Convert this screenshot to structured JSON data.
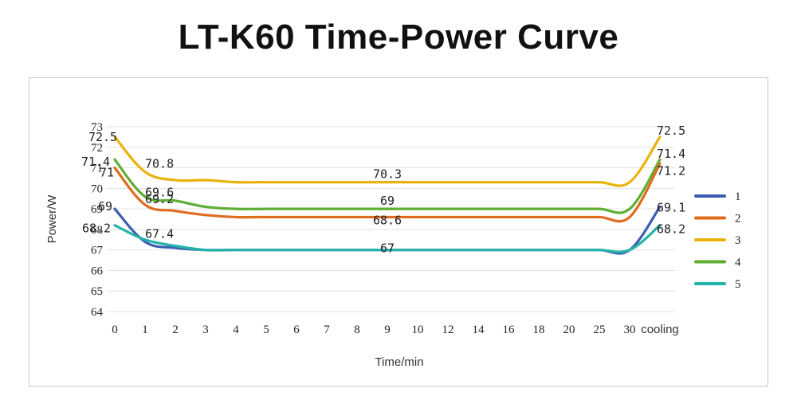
{
  "title": "LT-K60 Time-Power Curve",
  "chart_data": {
    "type": "line",
    "title": "LT-K60 Time-Power Curve",
    "xlabel": "Time/min",
    "ylabel": "Power/W",
    "ylim": [
      64,
      73
    ],
    "y_ticks": [
      "64",
      "65",
      "66",
      "67",
      "68",
      "69",
      "70",
      "71",
      "72",
      "73"
    ],
    "categories": [
      "0",
      "1",
      "2",
      "3",
      "4",
      "5",
      "6",
      "7",
      "8",
      "9",
      "10",
      "12",
      "14",
      "16",
      "18",
      "20",
      "25",
      "30",
      "cooling"
    ],
    "grid": true,
    "legend_position": "right",
    "series": [
      {
        "name": "1",
        "color": "#3a5fb0",
        "values": [
          69,
          67.4,
          67.1,
          67,
          67,
          67,
          67,
          67,
          67,
          67,
          67,
          67,
          67,
          67,
          67,
          67,
          67,
          67,
          69.1
        ]
      },
      {
        "name": "2",
        "color": "#e06c1e",
        "values": [
          71,
          69.2,
          68.9,
          68.7,
          68.6,
          68.6,
          68.6,
          68.6,
          68.6,
          68.6,
          68.6,
          68.6,
          68.6,
          68.6,
          68.6,
          68.6,
          68.6,
          68.6,
          71.2
        ]
      },
      {
        "name": "3",
        "color": "#e9b30c",
        "values": [
          72.5,
          70.8,
          70.4,
          70.4,
          70.3,
          70.3,
          70.3,
          70.3,
          70.3,
          70.3,
          70.3,
          70.3,
          70.3,
          70.3,
          70.3,
          70.3,
          70.3,
          70.3,
          72.5
        ]
      },
      {
        "name": "4",
        "color": "#5fae34",
        "values": [
          71.4,
          69.6,
          69.4,
          69.1,
          69,
          69,
          69,
          69,
          69,
          69,
          69,
          69,
          69,
          69,
          69,
          69,
          69,
          69,
          71.4
        ]
      },
      {
        "name": "5",
        "color": "#24b3a8",
        "values": [
          68.2,
          67.5,
          67.2,
          67,
          67,
          67,
          67,
          67,
          67,
          67,
          67,
          67,
          67,
          67,
          67,
          67,
          67,
          67,
          68.2
        ]
      }
    ],
    "annotations": [
      {
        "text": "72.5",
        "x": "0",
        "y": 72.5
      },
      {
        "text": "71.4",
        "x": "0",
        "y": 71.4
      },
      {
        "text": "71",
        "x": "0",
        "y": 71
      },
      {
        "text": "69",
        "x": "0",
        "y": 69
      },
      {
        "text": "68.2",
        "x": "0",
        "y": 68.2
      },
      {
        "text": "70.8",
        "x": "1",
        "y": 70.8
      },
      {
        "text": "69.6",
        "x": "1",
        "y": 69.6
      },
      {
        "text": "69.2",
        "x": "1",
        "y": 69.2
      },
      {
        "text": "67.4",
        "x": "1",
        "y": 67.4
      },
      {
        "text": "70.3",
        "x": "9",
        "y": 70.3
      },
      {
        "text": "69",
        "x": "9",
        "y": 69
      },
      {
        "text": "68.6",
        "x": "9",
        "y": 68.6
      },
      {
        "text": "67",
        "x": "9",
        "y": 67
      },
      {
        "text": "72.5",
        "x": "cooling",
        "y": 72.5
      },
      {
        "text": "71.4",
        "x": "cooling",
        "y": 71.4
      },
      {
        "text": "71.2",
        "x": "cooling",
        "y": 71.2
      },
      {
        "text": "69.1",
        "x": "cooling",
        "y": 69.1
      },
      {
        "text": "68.2",
        "x": "cooling",
        "y": 68.2
      }
    ]
  }
}
